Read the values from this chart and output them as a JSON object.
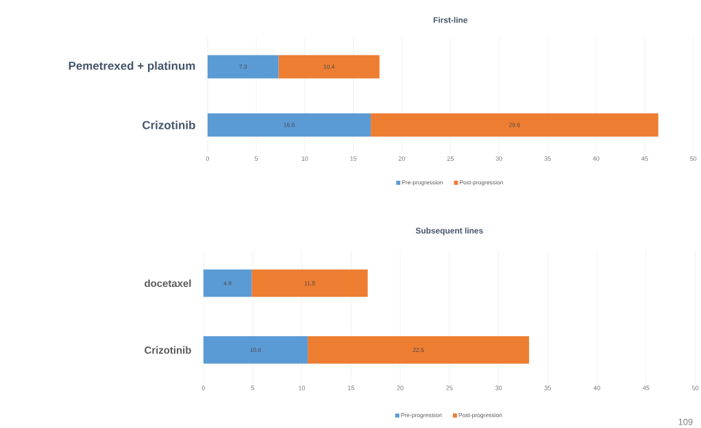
{
  "chart_data": [
    {
      "type": "bar",
      "orientation": "horizontal",
      "stacked": true,
      "title": "First-line",
      "categories": [
        "Pemetrexed + platinum",
        "Crizotinib"
      ],
      "series": [
        {
          "name": "Pre-progression",
          "color": "#5b9bd5",
          "values": [
            7.3,
            16.8
          ]
        },
        {
          "name": "Post-progression",
          "color": "#ed7d31",
          "values": [
            10.4,
            29.6
          ]
        }
      ],
      "xlim": [
        0,
        50
      ],
      "xticks": [
        0,
        5,
        10,
        15,
        20,
        25,
        30,
        35,
        40,
        45,
        50
      ],
      "grid": "x",
      "legend": "bottom",
      "data_labels": true
    },
    {
      "type": "bar",
      "orientation": "horizontal",
      "stacked": true,
      "title": "Subsequent lines",
      "categories": [
        "docetaxel",
        "Crizotinib"
      ],
      "series": [
        {
          "name": "Pre-progression",
          "color": "#5b9bd5",
          "values": [
            4.9,
            10.6
          ]
        },
        {
          "name": "Post-progression",
          "color": "#ed7d31",
          "values": [
            11.8,
            22.5
          ]
        }
      ],
      "xlim": [
        0,
        50
      ],
      "xticks": [
        0,
        5,
        10,
        15,
        20,
        25,
        30,
        35,
        40,
        45,
        50
      ],
      "grid": "x",
      "legend": "bottom",
      "data_labels": true,
      "annotations": [
        "109"
      ]
    }
  ]
}
